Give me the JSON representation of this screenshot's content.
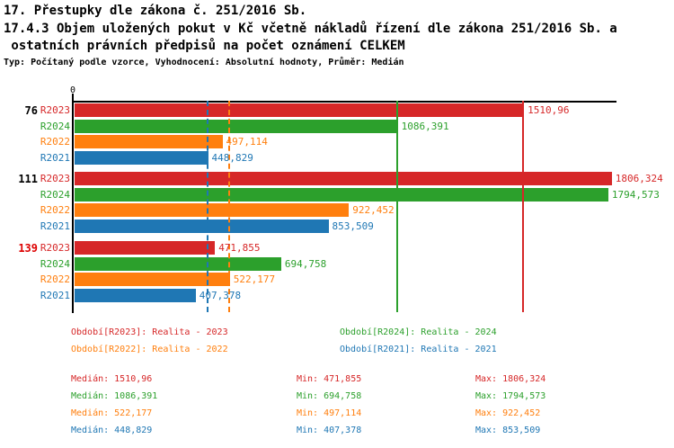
{
  "header": {
    "title_line1": "17. Přestupky dle zákona č. 251/2016 Sb.",
    "title_line2": "17.4.3 Objem uložených pokut v Kč včetně nákladů řízení dle zákona 251/2016 Sb. a",
    "title_line3": " ostatních právních předpisů na počet oznámení CELKEM",
    "meta_line": "Typ: Počítaný podle vzorce, Vyhodnocení: Absolutní hodnoty, Průměr: Medián"
  },
  "colors": {
    "R2023": "#d62728",
    "R2024": "#2ca02c",
    "R2022": "#ff7f0e",
    "R2021": "#1f77b4",
    "axis": "#000000",
    "highlight_row_label": "#dd0000"
  },
  "chart_data": {
    "type": "bar",
    "orientation": "horizontal",
    "title": "17.4.3 Objem uložených pokut v Kč včetně nákladů řízení dle zákona 251/2016 Sb. a ostatních právních předpisů na počet oznámení CELKEM",
    "axis": {
      "min": 0,
      "max": 1825,
      "zero_label": "0",
      "grid": false
    },
    "series_order": [
      "R2023",
      "R2024",
      "R2022",
      "R2021"
    ],
    "groups": [
      {
        "label": "76",
        "label_color": "#000000",
        "bars": [
          {
            "series": "R2023",
            "value": 1510.96,
            "label": "1510,96"
          },
          {
            "series": "R2024",
            "value": 1086.391,
            "label": "1086,391"
          },
          {
            "series": "R2022",
            "value": 497.114,
            "label": "497,114"
          },
          {
            "series": "R2021",
            "value": 448.829,
            "label": "448,829"
          }
        ]
      },
      {
        "label": "111",
        "label_color": "#000000",
        "bars": [
          {
            "series": "R2023",
            "value": 1806.324,
            "label": "1806,324"
          },
          {
            "series": "R2024",
            "value": 1794.573,
            "label": "1794,573"
          },
          {
            "series": "R2022",
            "value": 922.452,
            "label": "922,452"
          },
          {
            "series": "R2021",
            "value": 853.509,
            "label": "853,509"
          }
        ]
      },
      {
        "label": "139",
        "label_color": "#dd0000",
        "bars": [
          {
            "series": "R2023",
            "value": 471.855,
            "label": "471,855"
          },
          {
            "series": "R2024",
            "value": 694.758,
            "label": "694,758"
          },
          {
            "series": "R2022",
            "value": 522.177,
            "label": "522,177"
          },
          {
            "series": "R2021",
            "value": 407.378,
            "label": "407,378"
          }
        ]
      }
    ],
    "reference_lines": [
      {
        "series": "R2021",
        "value": 448.829,
        "style": "dashed",
        "color": "#1f77b4"
      },
      {
        "series": "R2022",
        "value": 522.177,
        "style": "dashed",
        "color": "#ff7f0e"
      },
      {
        "series": "R2024",
        "value": 1086.391,
        "style": "solid",
        "color": "#2ca02c"
      },
      {
        "series": "R2023",
        "value": 1510.96,
        "style": "solid",
        "color": "#d62728"
      }
    ]
  },
  "legend": {
    "items": [
      {
        "text": "Období[R2023]: Realita - 2023",
        "color": "#d62728"
      },
      {
        "text": "Období[R2024]: Realita - 2024",
        "color": "#2ca02c"
      },
      {
        "text": "Období[R2022]: Realita - 2022",
        "color": "#ff7f0e"
      },
      {
        "text": "Období[R2021]: Realita - 2021",
        "color": "#1f77b4"
      }
    ]
  },
  "stats": {
    "rows": [
      {
        "median": "Medián: 1510,96",
        "min": "Min: 471,855",
        "max": "Max: 1806,324",
        "color": "#d62728"
      },
      {
        "median": "Medián: 1086,391",
        "min": "Min: 694,758",
        "max": "Max: 1794,573",
        "color": "#2ca02c"
      },
      {
        "median": "Medián: 522,177",
        "min": "Min: 497,114",
        "max": "Max: 922,452",
        "color": "#ff7f0e"
      },
      {
        "median": "Medián: 448,829",
        "min": "Min: 407,378",
        "max": "Max: 853,509",
        "color": "#1f77b4"
      }
    ]
  }
}
